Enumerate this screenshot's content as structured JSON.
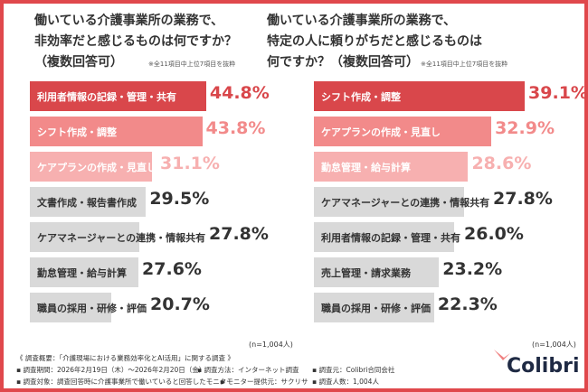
{
  "colors": {
    "top": "#d9474b",
    "second": "#f28a8a",
    "third": "#f7b0b0",
    "rest": "#d9d9d9",
    "frame": "#e0484c"
  },
  "chart_data": [
    {
      "type": "bar",
      "orientation": "horizontal",
      "title_lines": [
        "働いている介護事業所の業務で、",
        "非効率だと感じるものは何ですか？",
        "（複数回答可）"
      ],
      "note": "※全11項目中上位7項目を抜粋",
      "categories": [
        "利用者情報の記録・管理・共有",
        "シフト作成・調整",
        "ケアプランの作成・見直し",
        "文書作成・報告書作成",
        "ケアマネージャーとの連携・情報共有",
        "勤怠管理・給与計算",
        "職員の採用・研修・評価"
      ],
      "values": [
        44.8,
        43.8,
        31.1,
        29.5,
        27.8,
        27.6,
        20.7
      ],
      "labels": [
        "44.8%",
        "43.8%",
        "31.1%",
        "29.5%",
        "27.8%",
        "27.6%",
        "20.7%"
      ],
      "n": "(n=1,004人)",
      "unit": "%"
    },
    {
      "type": "bar",
      "orientation": "horizontal",
      "title_lines": [
        "働いている介護事業所の業務で、",
        "特定の人に頼りがちだと感じるものは",
        "何ですか？（複数回答可）"
      ],
      "note": "※全11項目中上位7項目を抜粋",
      "categories": [
        "シフト作成・調整",
        "ケアプランの作成・見直し",
        "勤怠管理・給与計算",
        "ケアマネージャーとの連携・情報共有",
        "利用者情報の記録・管理・共有",
        "売上管理・請求業務",
        "職員の採用・研修・評価"
      ],
      "values": [
        39.1,
        32.9,
        28.6,
        27.8,
        26.0,
        23.2,
        22.3
      ],
      "labels": [
        "39.1%",
        "32.9%",
        "28.6%",
        "27.8%",
        "26.0%",
        "23.2%",
        "22.3%"
      ],
      "n": "(n=1,004人)",
      "unit": "%"
    }
  ],
  "footer": {
    "summary": "《 調査概要：「介護現場における業務効率化とAI活用」に関する調査 》",
    "period": "▪ 調査期間：2026年2月19日（木）～2026年2月20日（金）",
    "method": "▪ 調査方法：インターネット調査",
    "source": "▪ 調査元：Colibri合同会社",
    "target": "▪ 調査対象：調査回答時に介護事業所で働いていると回答したモニター",
    "provider": "▪ モニター提供元：サクリサ",
    "count": "▪ 調査人数：1,004人"
  },
  "logo": "Colibri"
}
